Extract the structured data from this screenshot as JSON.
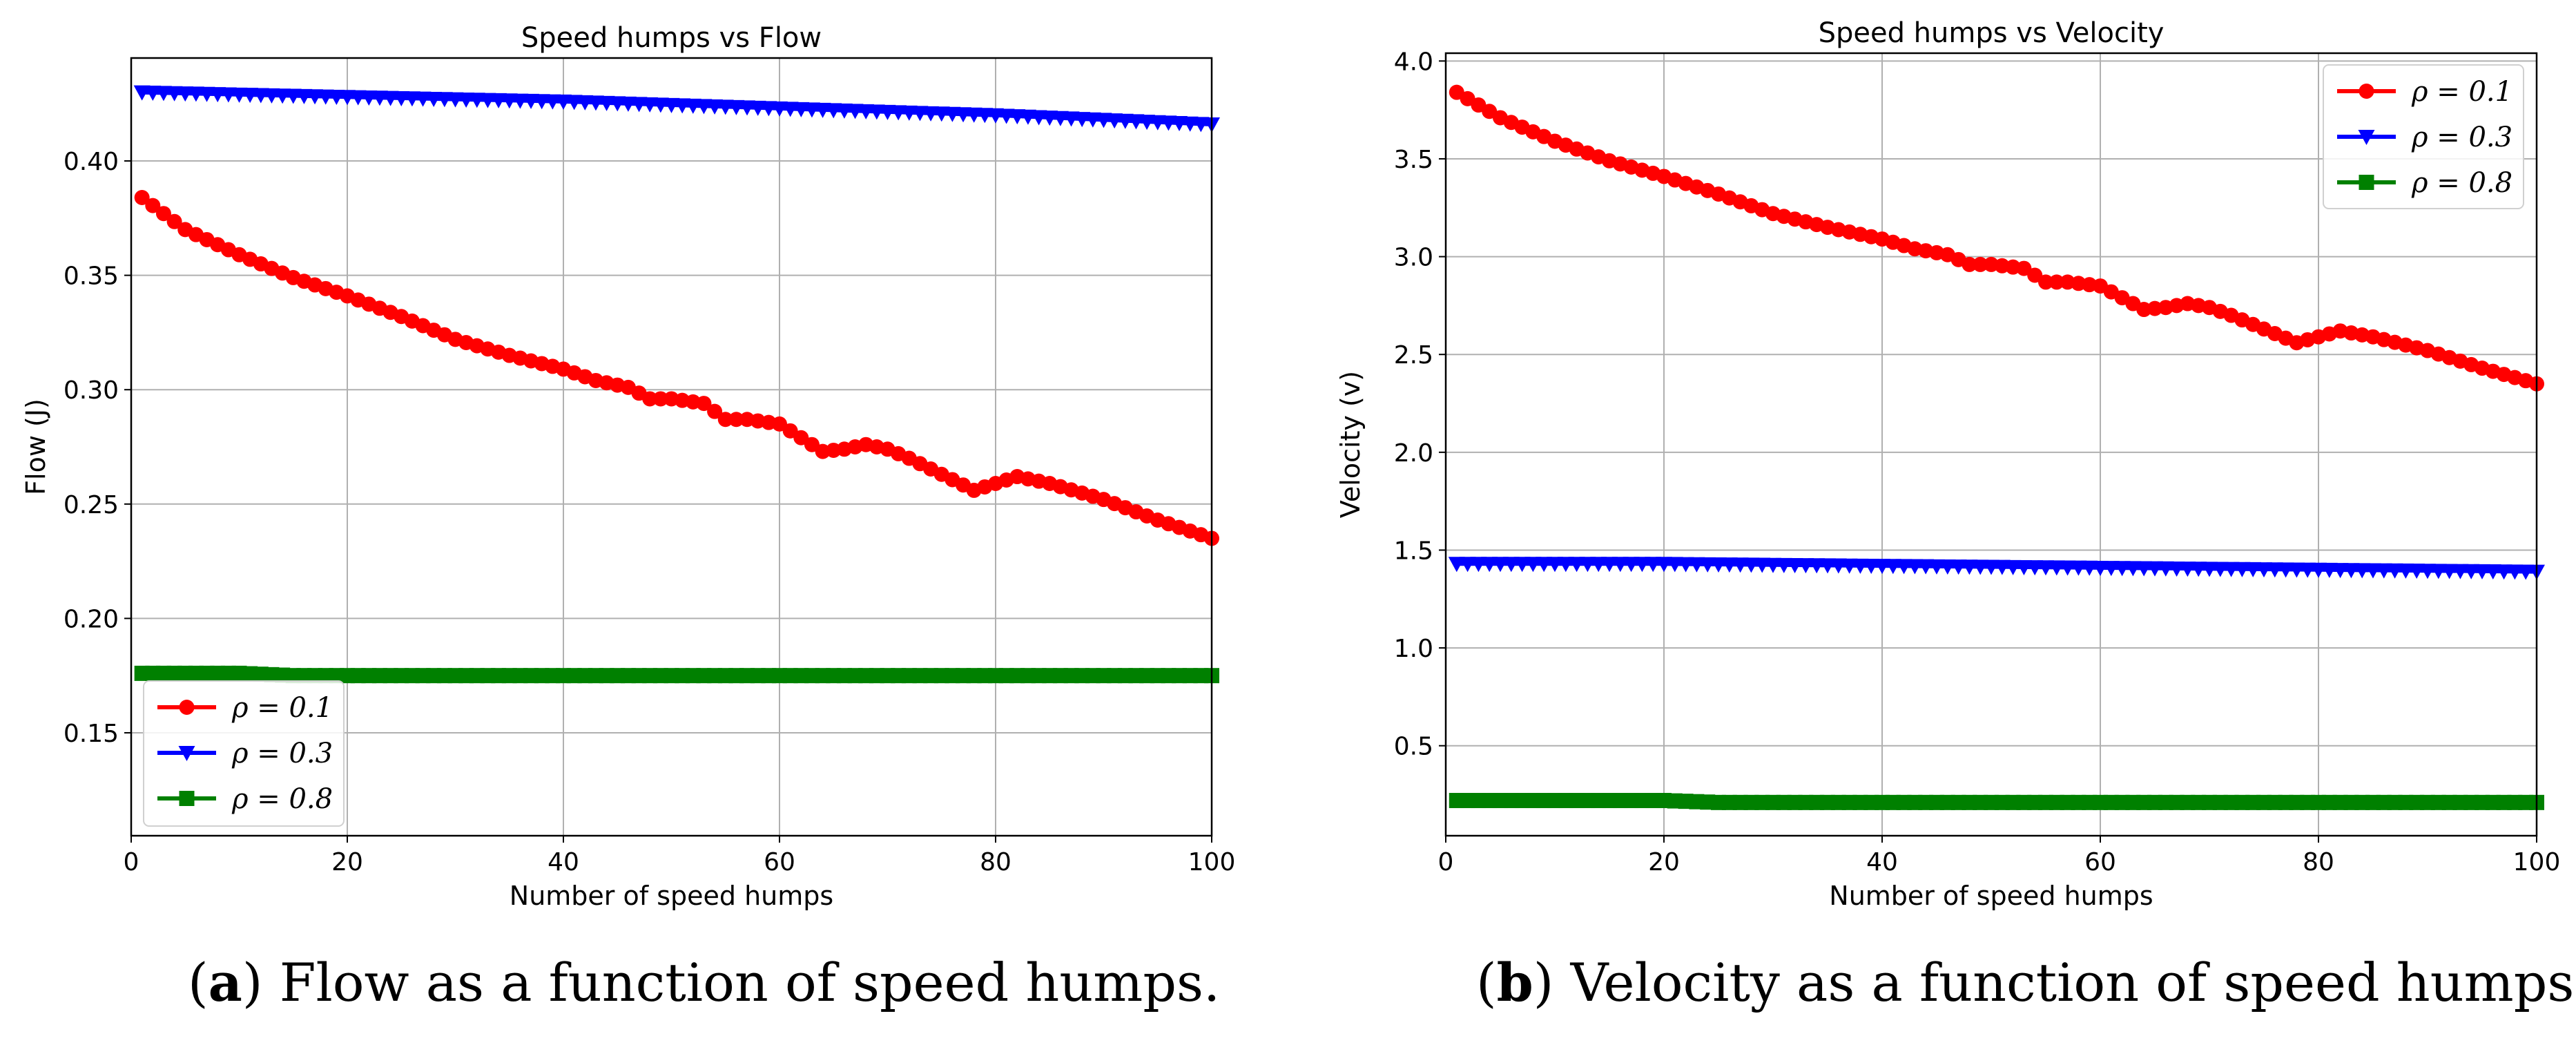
{
  "chart_data": [
    {
      "type": "line",
      "title": "Speed humps vs Flow",
      "xlabel": "Number of speed humps",
      "ylabel": "Flow (J)",
      "xlim": [
        0,
        100
      ],
      "ylim": [
        0.105,
        0.445
      ],
      "xticks": [
        0,
        20,
        40,
        60,
        80,
        100
      ],
      "yticks": [
        0.15,
        0.2,
        0.25,
        0.3,
        0.35,
        0.4
      ],
      "ytick_labels": [
        "0.15",
        "0.20",
        "0.25",
        "0.30",
        "0.35",
        "0.40"
      ],
      "grid": true,
      "legend_position": "lower-left",
      "series": [
        {
          "name": "ρ = 0.1",
          "color": "#ff0000",
          "marker": "circle",
          "x": [
            1,
            5,
            10,
            15,
            20,
            25,
            30,
            35,
            40,
            43,
            46,
            48,
            50,
            53,
            55,
            57,
            60,
            62,
            64,
            66,
            68,
            70,
            72,
            75,
            78,
            80,
            82,
            85,
            90,
            95,
            100
          ],
          "y": [
            0.384,
            0.37,
            0.359,
            0.349,
            0.341,
            0.332,
            0.322,
            0.315,
            0.309,
            0.304,
            0.301,
            0.296,
            0.296,
            0.294,
            0.287,
            0.287,
            0.285,
            0.279,
            0.273,
            0.274,
            0.276,
            0.274,
            0.27,
            0.263,
            0.256,
            0.259,
            0.262,
            0.259,
            0.252,
            0.243,
            0.235
          ]
        },
        {
          "name": "ρ = 0.3",
          "color": "#0000ff",
          "marker": "triangle-down",
          "x": [
            1,
            20,
            40,
            60,
            80,
            100
          ],
          "y": [
            0.43,
            0.428,
            0.426,
            0.423,
            0.42,
            0.416
          ]
        },
        {
          "name": "ρ = 0.8",
          "color": "#008000",
          "marker": "square",
          "x": [
            1,
            10,
            15,
            20,
            40,
            60,
            80,
            100
          ],
          "y": [
            0.176,
            0.176,
            0.175,
            0.175,
            0.175,
            0.175,
            0.175,
            0.175
          ]
        }
      ]
    },
    {
      "type": "line",
      "title": "Speed humps vs Velocity",
      "xlabel": "Number of speed humps",
      "ylabel": "Velocity (v)",
      "xlim": [
        0,
        100
      ],
      "ylim": [
        0.04,
        4.04
      ],
      "xticks": [
        0,
        20,
        40,
        60,
        80,
        100
      ],
      "yticks": [
        0.5,
        1.0,
        1.5,
        2.0,
        2.5,
        3.0,
        3.5,
        4.0
      ],
      "ytick_labels": [
        "0.5",
        "1.0",
        "1.5",
        "2.0",
        "2.5",
        "3.0",
        "3.5",
        "4.0"
      ],
      "grid": true,
      "legend_position": "top-right",
      "series": [
        {
          "name": "ρ = 0.1",
          "color": "#ff0000",
          "marker": "circle",
          "x": [
            1,
            5,
            10,
            15,
            20,
            25,
            30,
            35,
            40,
            43,
            46,
            48,
            50,
            53,
            55,
            57,
            60,
            62,
            64,
            66,
            68,
            70,
            72,
            75,
            78,
            80,
            82,
            85,
            90,
            95,
            100
          ],
          "y": [
            3.84,
            3.71,
            3.59,
            3.49,
            3.41,
            3.32,
            3.22,
            3.15,
            3.09,
            3.04,
            3.01,
            2.96,
            2.96,
            2.94,
            2.87,
            2.87,
            2.85,
            2.79,
            2.73,
            2.74,
            2.76,
            2.74,
            2.7,
            2.63,
            2.56,
            2.59,
            2.62,
            2.59,
            2.52,
            2.43,
            2.35
          ]
        },
        {
          "name": "ρ = 0.3",
          "color": "#0000ff",
          "marker": "triangle-down",
          "x": [
            1,
            20,
            40,
            60,
            80,
            100
          ],
          "y": [
            1.43,
            1.43,
            1.42,
            1.41,
            1.4,
            1.39
          ]
        },
        {
          "name": "ρ = 0.8",
          "color": "#008000",
          "marker": "square",
          "x": [
            1,
            10,
            20,
            25,
            30,
            40,
            60,
            80,
            100
          ],
          "y": [
            0.22,
            0.22,
            0.22,
            0.21,
            0.21,
            0.21,
            0.21,
            0.21,
            0.21
          ]
        }
      ]
    }
  ],
  "captions": [
    {
      "letter": "a",
      "text": ") Flow as a function of speed humps."
    },
    {
      "letter": "b",
      "text": ") Velocity as a function of speed humps."
    }
  ],
  "caption_open": "("
}
